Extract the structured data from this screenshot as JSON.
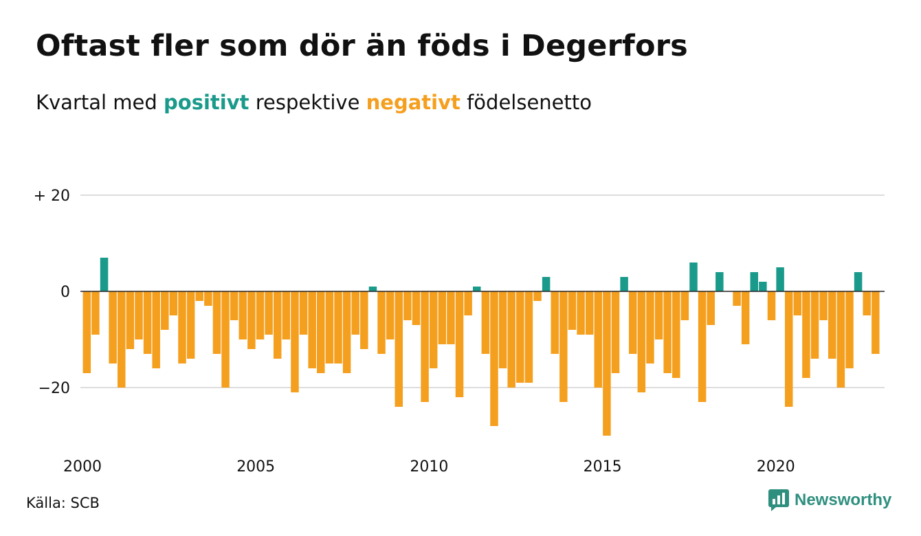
{
  "title": "Oftast fler som dör än föds i Degerfors",
  "subtitle": {
    "prefix": "Kvartal med",
    "positive_word": "positivt",
    "middle": "respektive",
    "negative_word": "negativt",
    "suffix": "födelsenetto"
  },
  "source": "Källa: SCB",
  "brand": {
    "name": "Newsworthy",
    "icon": "newsworthy-logo-icon"
  },
  "colors": {
    "positive": "#1a9a8a",
    "negative": "#f59f1f",
    "grid": "#dddddd",
    "zero_line": "#222222"
  },
  "chart_data": {
    "type": "bar",
    "x_unit": "quarter",
    "x_start": "2000-Q1",
    "x_ticks": [
      2000,
      2005,
      2010,
      2015,
      2020
    ],
    "x_tick_labels": [
      "2000",
      "2005",
      "2010",
      "2015",
      "2020"
    ],
    "y_ticks": [
      20,
      0,
      -20
    ],
    "y_tick_labels": [
      "+ 20",
      "0",
      "−20"
    ],
    "ylim": [
      -31,
      21
    ],
    "grid": true,
    "xlabel": "",
    "ylabel": "",
    "values": [
      -17,
      -9,
      7,
      -15,
      -20,
      -12,
      -10,
      -13,
      -16,
      -8,
      -5,
      -15,
      -14,
      -2,
      -3,
      -13,
      -20,
      -6,
      -10,
      -12,
      -10,
      -9,
      -14,
      -10,
      -21,
      -9,
      -16,
      -17,
      -15,
      -15,
      -17,
      -9,
      -12,
      1,
      -13,
      -10,
      -24,
      -6,
      -7,
      -23,
      -16,
      -11,
      -11,
      -22,
      -5,
      1,
      -13,
      -28,
      -16,
      -20,
      -19,
      -19,
      -2,
      3,
      -13,
      -23,
      -8,
      -9,
      -9,
      -20,
      -30,
      -17,
      3,
      -13,
      -21,
      -15,
      -10,
      -17,
      -18,
      -6,
      6,
      -23,
      -7,
      4,
      0,
      -3,
      -11,
      4,
      2,
      -6,
      5,
      -24,
      -5,
      -18,
      -14,
      -6,
      -14,
      -20,
      -16,
      4,
      -5,
      -13
    ]
  }
}
